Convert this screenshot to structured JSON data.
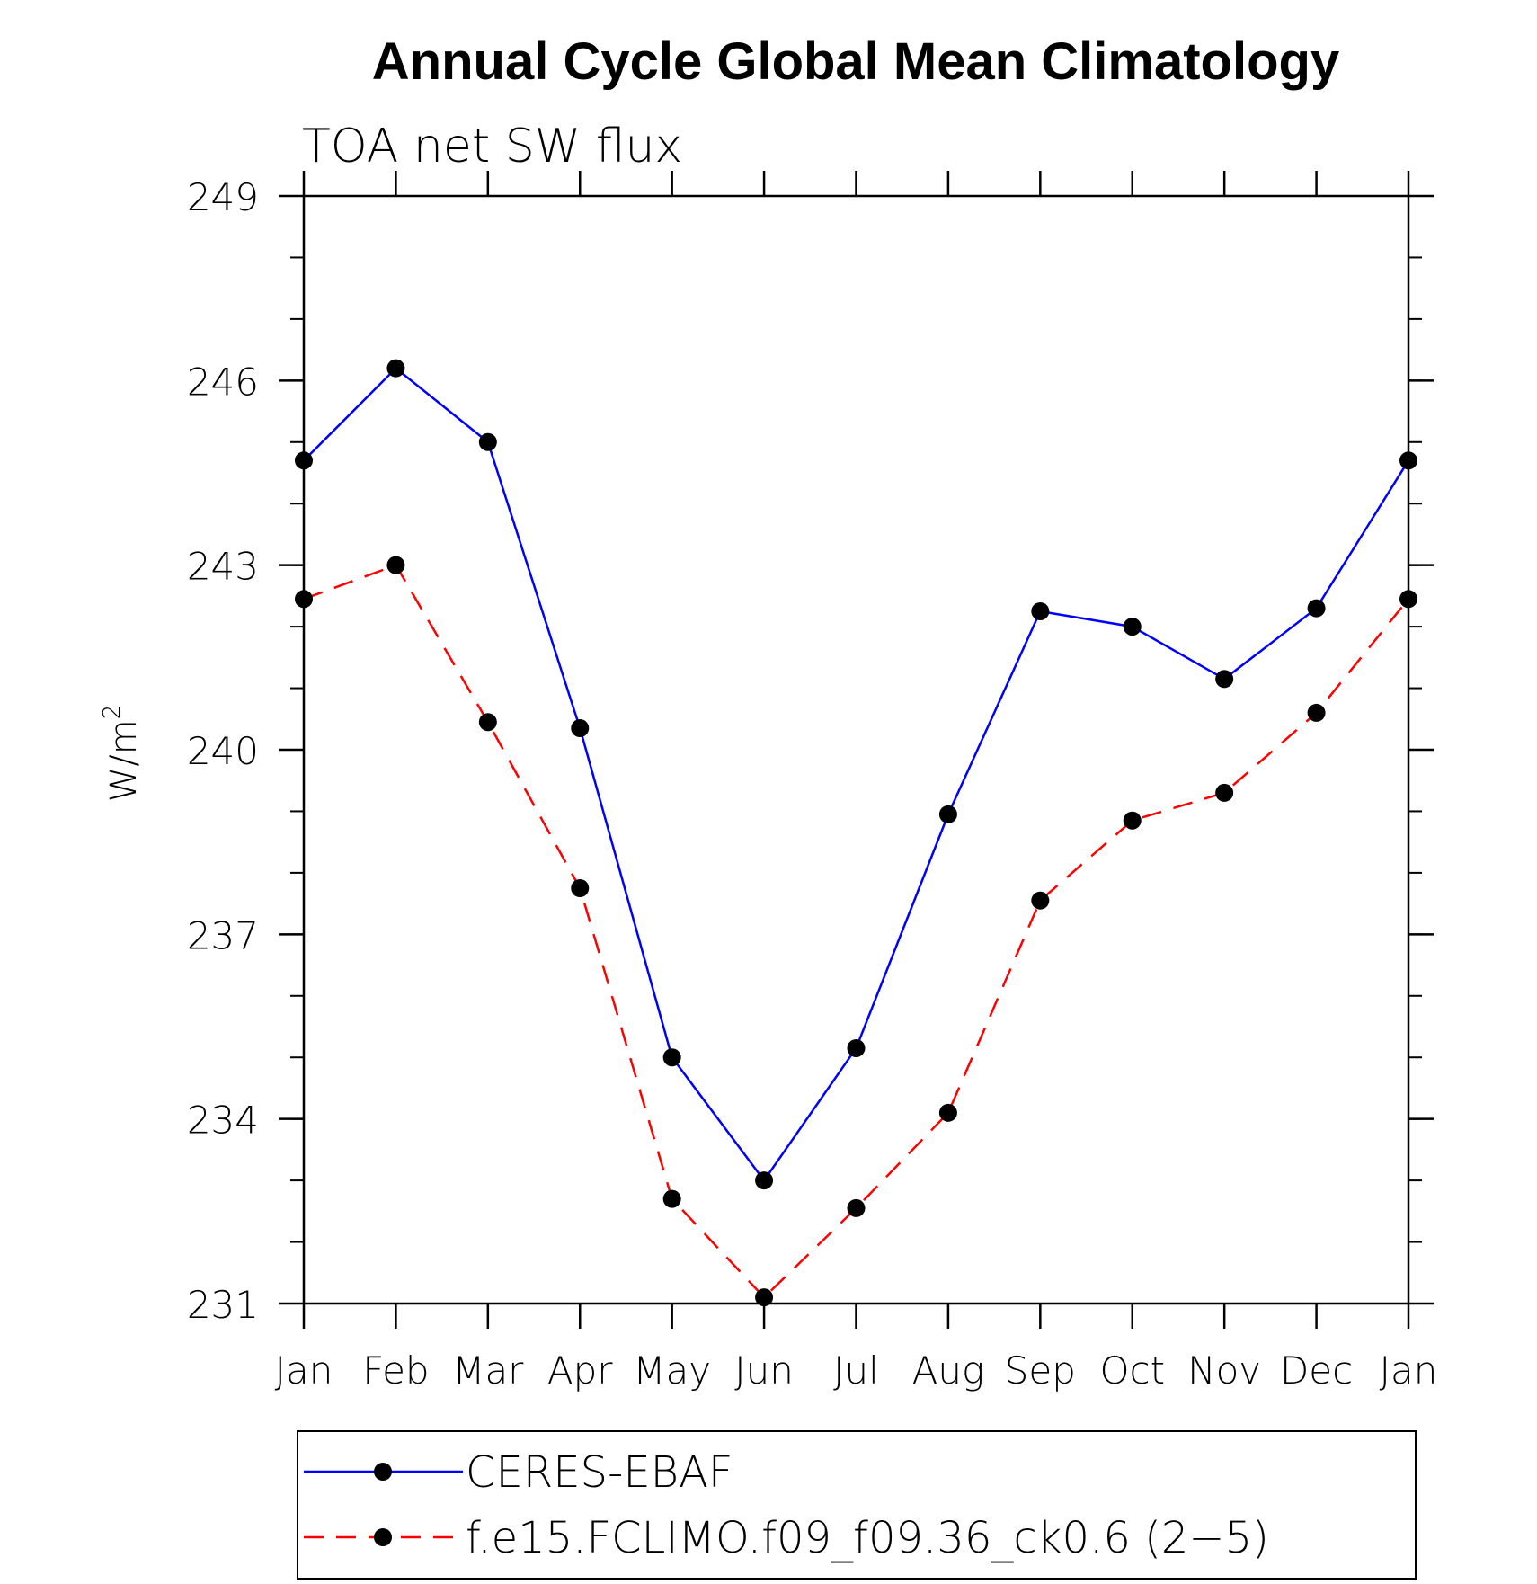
{
  "chart_data": {
    "type": "line",
    "title": "Annual Cycle Global Mean Climatology",
    "subtitle": "TOA net SW flux",
    "ylabel": "W/m",
    "ylabel_superscript": "2",
    "xlabel": "",
    "categories": [
      "Jan",
      "Feb",
      "Mar",
      "Apr",
      "May",
      "Jun",
      "Jul",
      "Aug",
      "Sep",
      "Oct",
      "Nov",
      "Dec",
      "Jan"
    ],
    "ylim": [
      231,
      249
    ],
    "yticks": [
      231,
      234,
      237,
      240,
      243,
      246,
      249
    ],
    "yminor_step": 1,
    "grid": false,
    "legend_position": "bottom",
    "series": [
      {
        "name": "CERES-EBAF",
        "color": "#0000ff",
        "dash": "solid",
        "marker": "filled-circle",
        "values": [
          244.7,
          246.2,
          245.0,
          240.35,
          235.0,
          233.0,
          235.15,
          238.95,
          242.25,
          242.0,
          241.15,
          242.3,
          244.7
        ]
      },
      {
        "name": "f.e15.FCLIMO.f09_f09.36_ck0.6 (2−5)",
        "color": "#ff0000",
        "dash": "dashed",
        "marker": "filled-circle",
        "values": [
          242.45,
          243.0,
          240.45,
          237.75,
          232.7,
          231.1,
          232.55,
          234.1,
          237.55,
          238.85,
          239.3,
          240.6,
          242.45
        ]
      }
    ]
  }
}
